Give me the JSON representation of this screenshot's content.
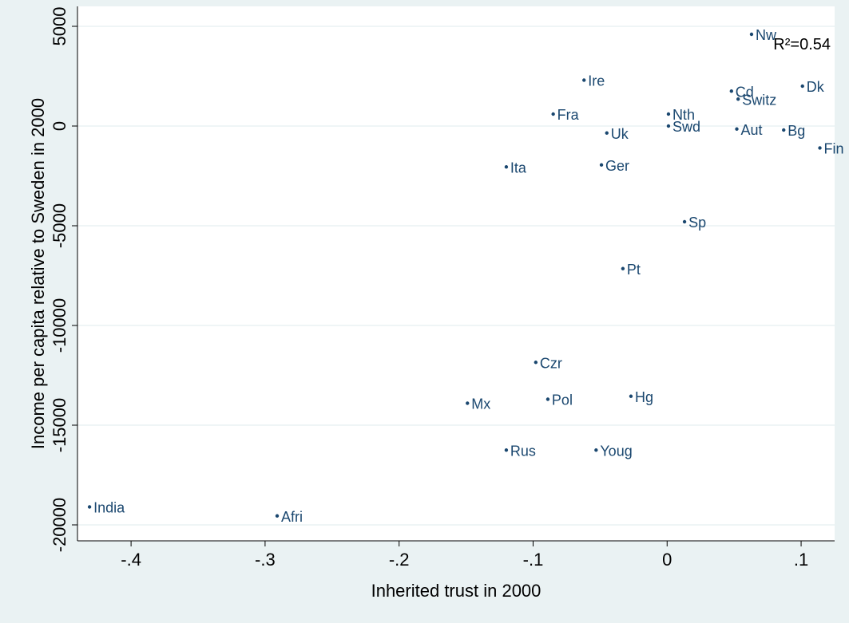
{
  "chart_data": {
    "type": "scatter",
    "xlabel": "Inherited trust in 2000",
    "ylabel": "Income per capita relative to Sweden in 2000",
    "xlim": [
      -0.44,
      0.125
    ],
    "ylim": [
      -20800,
      6000
    ],
    "x_ticks": [
      -0.4,
      -0.3,
      -0.2,
      -0.1,
      0,
      0.1
    ],
    "x_tick_labels": [
      "-.4",
      "-.3",
      "-.2",
      "-.1",
      "0",
      ".1"
    ],
    "y_ticks": [
      5000,
      0,
      -5000,
      -10000,
      -15000,
      -20000
    ],
    "y_tick_labels": [
      "5000",
      "0",
      "-5000",
      "-10000",
      "-15000",
      "-20000"
    ],
    "grid": true,
    "annotation": "R²=0.54",
    "colors": {
      "marker": "#1a476f",
      "plot_bg": "#ffffff",
      "page_bg": "#eaf2f3"
    },
    "points": [
      {
        "label": "Nw",
        "x": 0.063,
        "y": 4600
      },
      {
        "label": "Ire",
        "x": -0.062,
        "y": 2300
      },
      {
        "label": "Dk",
        "x": 0.101,
        "y": 2000
      },
      {
        "label": "Cd",
        "x": 0.048,
        "y": 1750
      },
      {
        "label": "Switz",
        "x": 0.053,
        "y": 1350
      },
      {
        "label": "Fra",
        "x": -0.085,
        "y": 600
      },
      {
        "label": "Nth",
        "x": 0.001,
        "y": 600
      },
      {
        "label": "Swd",
        "x": 0.001,
        "y": 0
      },
      {
        "label": "Aut",
        "x": 0.052,
        "y": -150
      },
      {
        "label": "Bg",
        "x": 0.087,
        "y": -200
      },
      {
        "label": "Uk",
        "x": -0.045,
        "y": -350
      },
      {
        "label": "Fin",
        "x": 0.114,
        "y": -1100
      },
      {
        "label": "Ger",
        "x": -0.049,
        "y": -1950
      },
      {
        "label": "Ita",
        "x": -0.12,
        "y": -2050
      },
      {
        "label": "Sp",
        "x": 0.013,
        "y": -4800
      },
      {
        "label": "Pt",
        "x": -0.033,
        "y": -7150
      },
      {
        "label": "Czr",
        "x": -0.098,
        "y": -11850
      },
      {
        "label": "Hg",
        "x": -0.027,
        "y": -13550
      },
      {
        "label": "Pol",
        "x": -0.089,
        "y": -13700
      },
      {
        "label": "Mx",
        "x": -0.149,
        "y": -13900
      },
      {
        "label": "Rus",
        "x": -0.12,
        "y": -16250
      },
      {
        "label": "Youg",
        "x": -0.053,
        "y": -16250
      },
      {
        "label": "India",
        "x": -0.431,
        "y": -19100
      },
      {
        "label": "Afri",
        "x": -0.291,
        "y": -19550
      }
    ]
  }
}
